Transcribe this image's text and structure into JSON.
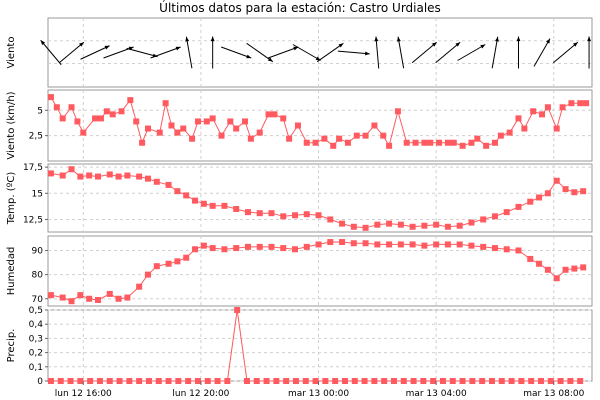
{
  "chart_data": {
    "type": "line",
    "title": "Últimos datos para la estación: Castro Urdiales",
    "x_time_labels": [
      "lun 12 16:00",
      "lun 12 20:00",
      "mar 13 00:00",
      "mar 13 04:00",
      "mar 13 08:00"
    ],
    "x_time_hours": [
      16,
      20,
      24,
      28,
      32
    ],
    "x_range_hours": [
      14.8,
      33.3
    ],
    "marker_color": "#ff5a5f",
    "panels": [
      {
        "id": "viento-dir",
        "ylabel": "Viento",
        "kind": "wind_arrows",
        "arrow_times": [
          14.9,
          15.6,
          16.4,
          17.2,
          18.0,
          18.8,
          19.6,
          20.4,
          21.2,
          22.0,
          22.8,
          23.6,
          24.4,
          25.2,
          26.0,
          26.8,
          27.6,
          28.4,
          29.2,
          30.0,
          30.8,
          31.6,
          32.4,
          33.2
        ],
        "arrow_directions_deg": [
          130,
          40,
          25,
          20,
          345,
          20,
          100,
          90,
          340,
          325,
          20,
          330,
          35,
          355,
          95,
          100,
          40,
          40,
          30,
          80,
          90,
          60,
          40,
          90
        ]
      },
      {
        "id": "viento-vel",
        "ylabel": "Viento (km/h)",
        "ylim": [
          0,
          7
        ],
        "yticks": [
          "2,5",
          "5"
        ],
        "ytick_values": [
          2.5,
          5
        ],
        "x": [
          14.9,
          15.1,
          15.3,
          15.6,
          15.8,
          16.0,
          16.4,
          16.6,
          16.8,
          17.0,
          17.3,
          17.6,
          17.8,
          18.0,
          18.2,
          18.6,
          18.8,
          19.0,
          19.2,
          19.4,
          19.7,
          19.9,
          20.2,
          20.4,
          20.7,
          21.0,
          21.2,
          21.5,
          21.7,
          22.0,
          22.3,
          22.5,
          22.8,
          23.0,
          23.3,
          23.6,
          23.9,
          24.2,
          24.5,
          24.7,
          25.0,
          25.3,
          25.6,
          25.9,
          26.2,
          26.4,
          26.7,
          27.0,
          27.3,
          27.6,
          27.8,
          28.1,
          28.4,
          28.6,
          28.9,
          29.2,
          29.4,
          29.7,
          30.0,
          30.2,
          30.5,
          30.8,
          31.0,
          31.3,
          31.6,
          31.8,
          32.1,
          32.3,
          32.6,
          32.9,
          33.1
        ],
        "y": [
          6.3,
          5.3,
          4.2,
          5.3,
          3.9,
          2.8,
          4.2,
          4.2,
          4.9,
          4.6,
          4.9,
          6.0,
          3.9,
          1.8,
          3.2,
          2.8,
          5.7,
          3.5,
          2.8,
          3.2,
          2.2,
          3.9,
          3.9,
          4.2,
          2.5,
          3.9,
          3.2,
          3.9,
          2.2,
          2.8,
          4.6,
          4.6,
          4.2,
          2.2,
          3.5,
          1.8,
          1.8,
          2.2,
          1.5,
          2.2,
          1.8,
          2.5,
          2.5,
          3.5,
          2.5,
          1.5,
          4.9,
          1.8,
          1.8,
          1.8,
          1.8,
          1.8,
          1.8,
          1.8,
          1.5,
          1.8,
          2.2,
          1.5,
          1.8,
          2.5,
          2.8,
          4.2,
          3.2,
          4.9,
          4.6,
          5.3,
          3.2,
          5.3,
          5.7,
          5.7,
          5.7
        ]
      },
      {
        "id": "temp",
        "ylabel": "Temp. (ºC)",
        "ylim": [
          11.3,
          17.8
        ],
        "yticks": [
          "12,5",
          "15",
          "17,5"
        ],
        "ytick_values": [
          12.5,
          15,
          17.5
        ],
        "x": [
          14.9,
          15.3,
          15.6,
          15.9,
          16.2,
          16.5,
          16.9,
          17.2,
          17.5,
          17.9,
          18.2,
          18.5,
          18.9,
          19.2,
          19.5,
          19.8,
          20.1,
          20.4,
          20.8,
          21.2,
          21.6,
          22.0,
          22.4,
          22.8,
          23.2,
          23.6,
          24.0,
          24.4,
          24.8,
          25.2,
          25.6,
          26.0,
          26.4,
          26.8,
          27.2,
          27.6,
          28.0,
          28.4,
          28.8,
          29.2,
          29.6,
          30.0,
          30.4,
          30.8,
          31.2,
          31.5,
          31.8,
          32.1,
          32.4,
          32.7,
          33.0
        ],
        "y": [
          16.9,
          16.7,
          17.3,
          16.6,
          16.7,
          16.6,
          16.8,
          16.6,
          16.7,
          16.6,
          16.4,
          16.1,
          15.8,
          15.2,
          14.8,
          14.3,
          14.0,
          13.8,
          13.8,
          13.5,
          13.2,
          13.1,
          13.1,
          12.8,
          12.9,
          13.0,
          12.9,
          12.5,
          12.1,
          11.8,
          11.7,
          12.0,
          12.1,
          12.0,
          11.8,
          11.9,
          12.0,
          11.8,
          11.9,
          12.2,
          12.5,
          12.8,
          13.2,
          13.7,
          14.2,
          14.6,
          15.0,
          16.2,
          15.4,
          15.1,
          15.2
        ]
      },
      {
        "id": "humedad",
        "ylabel": "Humedad",
        "ylim": [
          67,
          96
        ],
        "yticks": [
          "70",
          "80",
          "90"
        ],
        "ytick_values": [
          70,
          80,
          90
        ],
        "x": [
          14.9,
          15.3,
          15.6,
          15.9,
          16.2,
          16.5,
          16.9,
          17.2,
          17.5,
          17.9,
          18.2,
          18.5,
          18.9,
          19.2,
          19.5,
          19.8,
          20.1,
          20.4,
          20.8,
          21.2,
          21.6,
          22.0,
          22.4,
          22.8,
          23.2,
          23.6,
          24.0,
          24.4,
          24.8,
          25.2,
          25.6,
          26.0,
          26.4,
          26.8,
          27.2,
          27.6,
          28.0,
          28.4,
          28.8,
          29.2,
          29.6,
          30.0,
          30.4,
          30.8,
          31.2,
          31.5,
          31.8,
          32.1,
          32.4,
          32.7,
          33.0
        ],
        "y": [
          71.5,
          70.5,
          69.0,
          71.5,
          70.0,
          69.5,
          72.0,
          70.0,
          70.5,
          75.0,
          80.0,
          83.5,
          84.5,
          85.5,
          87.0,
          90.5,
          92.0,
          91.0,
          90.5,
          91.0,
          91.5,
          91.5,
          91.5,
          91.0,
          90.5,
          91.5,
          92.5,
          93.5,
          93.5,
          93.0,
          93.0,
          92.5,
          92.5,
          92.5,
          92.5,
          92.0,
          92.5,
          92.5,
          92.5,
          92.0,
          91.5,
          91.0,
          90.5,
          90.0,
          86.5,
          84.5,
          82.0,
          78.5,
          82.0,
          82.5,
          83.0
        ]
      },
      {
        "id": "precip",
        "ylabel": "Precip.",
        "ylim": [
          0,
          0.5
        ],
        "yticks": [
          "0",
          "0,1",
          "0,2",
          "0,3",
          "0,4",
          "0,5"
        ],
        "ytick_values": [
          0,
          0.1,
          0.2,
          0.3,
          0.4,
          0.5
        ],
        "x_start": 14.9,
        "x_step": 0.3333,
        "count": 55,
        "spike_index": 19,
        "spike_value": 0.5
      }
    ]
  }
}
